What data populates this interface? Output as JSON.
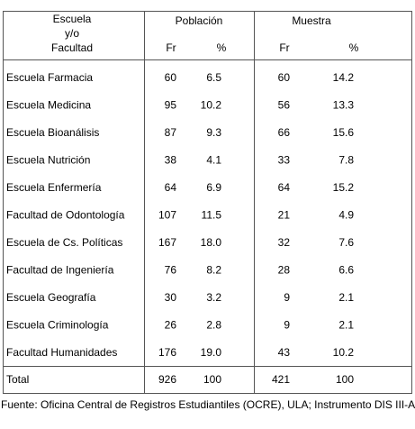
{
  "table": {
    "header": {
      "entity": [
        "Escuela",
        "y/o",
        "Facultad"
      ],
      "groups": [
        "Población",
        "Muestra"
      ],
      "subheaders": [
        "Fr",
        "%",
        "Fr",
        "%"
      ]
    },
    "rows": [
      [
        "Escuela Farmacia",
        "60",
        "6.5",
        "60",
        "14.2"
      ],
      [
        "Escuela Medicina",
        "95",
        "10.2",
        "56",
        "13.3"
      ],
      [
        "Escuela Bioanálisis",
        "87",
        "9.3",
        "66",
        "15.6"
      ],
      [
        "Escuela Nutrición",
        "38",
        "4.1",
        "33",
        "7.8"
      ],
      [
        "Escuela Enfermería",
        "64",
        "6.9",
        "64",
        "15.2"
      ],
      [
        "Facultad de Odontología",
        "107",
        "11.5",
        "21",
        "4.9"
      ],
      [
        "Escuela de Cs. Políticas",
        "167",
        "18.0",
        "32",
        "7.6"
      ],
      [
        "Facultad de Ingeniería",
        "76",
        "8.2",
        "28",
        "6.6"
      ],
      [
        "Escuela Geografía",
        "30",
        "3.2",
        "9",
        "2.1"
      ],
      [
        "Escuela Criminología",
        "26",
        "2.8",
        "9",
        "2.1"
      ],
      [
        "Facultad Humanidades",
        "176",
        "19.0",
        "43",
        "10.2"
      ]
    ],
    "total": [
      "Total",
      "926",
      "100",
      "421",
      "100"
    ]
  },
  "footer": "Fuente: Oficina Central de Registros Estudiantiles (OCRE), ULA; Instrumento DIS III-A"
}
